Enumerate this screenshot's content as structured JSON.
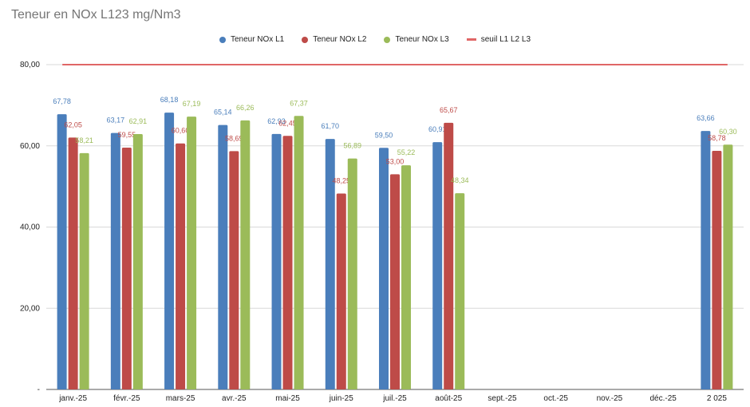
{
  "chart_data": {
    "type": "bar",
    "title": "Teneur en NOx L123 mg/Nm3",
    "categories": [
      "janv.-25",
      "févr.-25",
      "mars-25",
      "avr.-25",
      "mai-25",
      "juin-25",
      "juil.-25",
      "août-25",
      "sept.-25",
      "oct.-25",
      "nov.-25",
      "déc.-25",
      "2 025"
    ],
    "series": [
      {
        "name": "Teneur NOx L1",
        "color": "#4a7ebb",
        "values": [
          67.78,
          63.17,
          68.18,
          65.14,
          62.93,
          61.7,
          59.5,
          60.91,
          null,
          null,
          null,
          null,
          63.66
        ],
        "labels": [
          "67,78",
          "63,17",
          "68,18",
          "65,14",
          "62,93",
          "61,70",
          "59,50",
          "60,91",
          null,
          null,
          null,
          null,
          "63,66"
        ]
      },
      {
        "name": "Teneur NOx L2",
        "color": "#be4b48",
        "values": [
          62.05,
          59.55,
          60.6,
          58.69,
          62.45,
          48.25,
          53.0,
          65.67,
          null,
          null,
          null,
          null,
          58.78
        ],
        "labels": [
          "62,05",
          "59,55",
          "60,60",
          "58,69",
          "62,45",
          "48,25",
          "53,00",
          "65,67",
          null,
          null,
          null,
          null,
          "58,78"
        ]
      },
      {
        "name": "Teneur NOx L3",
        "color": "#9bbb59",
        "values": [
          58.21,
          62.91,
          67.19,
          66.26,
          67.37,
          56.89,
          55.22,
          48.34,
          null,
          null,
          null,
          null,
          60.3
        ],
        "labels": [
          "58,21",
          "62,91",
          "67,19",
          "66,26",
          "67,37",
          "56,89",
          "55,22",
          "48,34",
          null,
          null,
          null,
          null,
          "60,30"
        ]
      }
    ],
    "threshold": {
      "name": "seuil L1 L2 L3",
      "value": 80,
      "color": "#e06666"
    },
    "y_ticks": [
      {
        "value": 0,
        "label": "-"
      },
      {
        "value": 20,
        "label": "20,00"
      },
      {
        "value": 40,
        "label": "40,00"
      },
      {
        "value": 60,
        "label": "60,00"
      },
      {
        "value": 80,
        "label": "80,00"
      }
    ],
    "ylim": [
      0,
      80
    ],
    "xlabel": "",
    "ylabel": "",
    "grid": true,
    "legend_position": "top-center"
  }
}
